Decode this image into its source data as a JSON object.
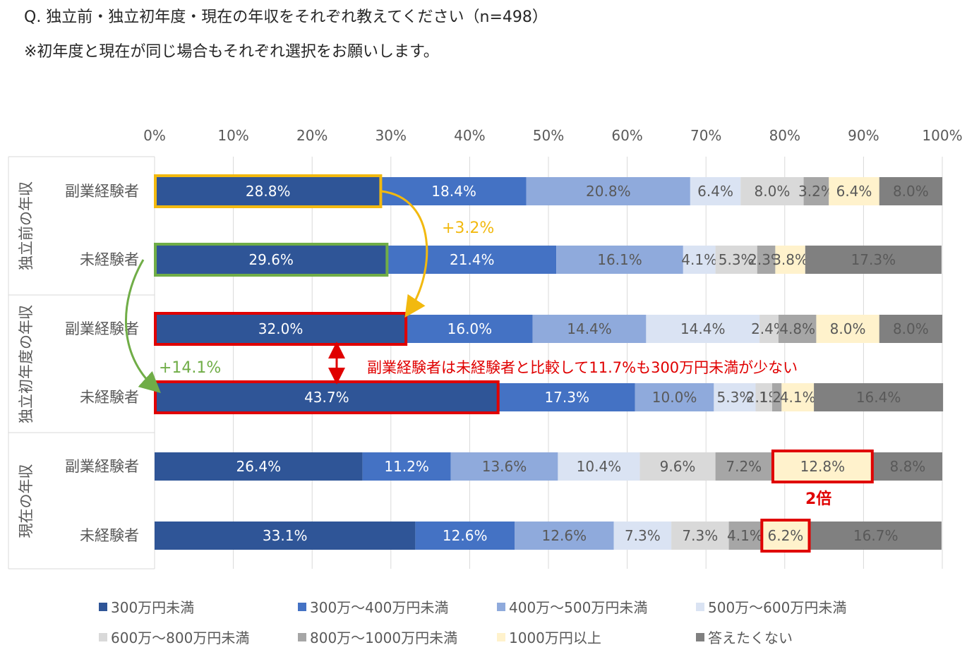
{
  "header": {
    "question": "Q. 独立前・独立初年度・現在の年収をそれぞれ教えてください（n=498）",
    "note": "※初年度と現在が同じ場合もそれぞれ選択をお願いします。"
  },
  "colors": {
    "segments": [
      "#2F5597",
      "#4472C4",
      "#8FAADC",
      "#DAE3F3",
      "#D9D9D9",
      "#A6A6A6",
      "#FFF2CC",
      "#808080"
    ],
    "yellow_highlight": "#F2B90F",
    "green_highlight": "#70AD47",
    "red_highlight": "#E00000"
  },
  "chart_data": {
    "type": "bar",
    "orientation": "horizontal",
    "stacked": "percent",
    "xlim": [
      0,
      100
    ],
    "x_ticks": [
      "0%",
      "10%",
      "20%",
      "30%",
      "40%",
      "50%",
      "60%",
      "70%",
      "80%",
      "90%",
      "100%"
    ],
    "groups": [
      {
        "label": "独立前の年収",
        "rows": [
          0,
          1
        ]
      },
      {
        "label": "独立初年度の年収",
        "rows": [
          2,
          3
        ]
      },
      {
        "label": "現在の年収",
        "rows": [
          4,
          5
        ]
      }
    ],
    "rows": [
      {
        "label": "副業経験者",
        "values": [
          28.8,
          18.4,
          20.8,
          6.4,
          8.0,
          3.2,
          6.4,
          8.0
        ]
      },
      {
        "label": "未経験者",
        "values": [
          29.6,
          21.4,
          16.1,
          4.1,
          5.3,
          2.3,
          3.8,
          17.3
        ]
      },
      {
        "label": "副業経験者",
        "values": [
          32.0,
          16.0,
          14.4,
          14.4,
          2.4,
          4.8,
          8.0,
          8.0
        ]
      },
      {
        "label": "未経験者",
        "values": [
          43.7,
          17.3,
          10.0,
          5.3,
          2.1,
          1.2,
          4.1,
          16.4
        ]
      },
      {
        "label": "副業経験者",
        "values": [
          26.4,
          11.2,
          13.6,
          10.4,
          9.6,
          7.2,
          12.8,
          8.8
        ]
      },
      {
        "label": "未経験者",
        "values": [
          33.1,
          12.6,
          12.6,
          7.3,
          7.3,
          4.1,
          6.2,
          16.7
        ]
      }
    ],
    "series": [
      {
        "name": "300万円未満"
      },
      {
        "name": "300万～400万円未満"
      },
      {
        "name": "400万～500万円未満"
      },
      {
        "name": "500万～600万円未満"
      },
      {
        "name": "600万～800万円未満"
      },
      {
        "name": "800万～1000万円未満"
      },
      {
        "name": "1000万円以上"
      },
      {
        "name": "答えたくない"
      }
    ],
    "annotations": {
      "yellow_diff": "+3.2%",
      "green_diff": "+14.1%",
      "red_comment": "副業経験者は未経験者と比較して11.7%も300万円未満が少ない",
      "double": "2倍"
    },
    "grid": true,
    "legend_position": "bottom"
  }
}
